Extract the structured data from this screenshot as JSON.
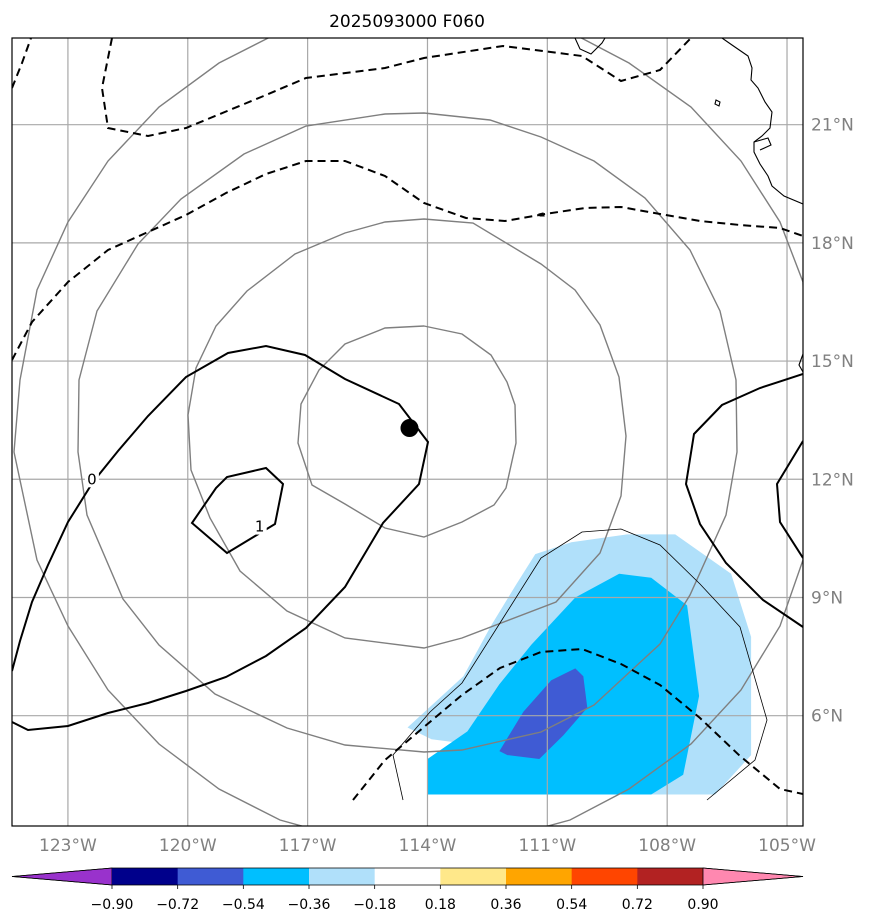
{
  "title": "2025093000 F060",
  "chart_data": {
    "type": "map",
    "projection": "lat-lon",
    "lon_range": [
      -124.4,
      -104.6
    ],
    "lat_range": [
      3.2,
      23.2
    ],
    "grid": true,
    "lon_ticks": [
      {
        "value": -123,
        "label": "123°W"
      },
      {
        "value": -120,
        "label": "120°W"
      },
      {
        "value": -117,
        "label": "117°W"
      },
      {
        "value": -114,
        "label": "114°W"
      },
      {
        "value": -111,
        "label": "111°W"
      },
      {
        "value": -108,
        "label": "108°W"
      },
      {
        "value": -105,
        "label": "105°W"
      }
    ],
    "lat_ticks": [
      {
        "value": 21,
        "label": "21°N"
      },
      {
        "value": 18,
        "label": "18°N"
      },
      {
        "value": 15,
        "label": "15°N"
      },
      {
        "value": 12,
        "label": "12°N"
      },
      {
        "value": 9,
        "label": "9°N"
      },
      {
        "value": 6,
        "label": "6°N"
      }
    ],
    "storm_center": {
      "lon": -114.45,
      "lat": 13.3
    },
    "range_rings_deg": [
      2.75,
      5.5,
      8.25,
      11
    ],
    "contour_labels": [
      {
        "text": "0",
        "lon": -122.4,
        "lat": 12.0
      },
      {
        "text": "1",
        "lon": -118.2,
        "lat": 10.8
      }
    ],
    "filled_regions": [
      {
        "value_range": [
          -0.54,
          -0.36
        ],
        "color": "#b0e0fa",
        "points": [
          [
            -111.6,
            4
          ],
          [
            -111.6,
            5.1
          ],
          [
            -113.9,
            5.4
          ],
          [
            -114.5,
            5.7
          ],
          [
            -113.1,
            7.0
          ],
          [
            -112.4,
            8.3
          ],
          [
            -111.8,
            9.3
          ],
          [
            -111.3,
            10.1
          ],
          [
            -110.4,
            10.4
          ],
          [
            -109.0,
            10.6
          ],
          [
            -107.8,
            10.6
          ],
          [
            -106.4,
            9.6
          ],
          [
            -105.9,
            8.0
          ],
          [
            -105.9,
            5.0
          ],
          [
            -106.8,
            4.0
          ]
        ]
      },
      {
        "value_range": [
          -0.72,
          -0.54
        ],
        "color": "#00bfff",
        "points": [
          [
            -114.0,
            4
          ],
          [
            -114.0,
            4.9
          ],
          [
            -113.0,
            5.6
          ],
          [
            -112.2,
            6.8
          ],
          [
            -111.4,
            7.8
          ],
          [
            -110.3,
            9.0
          ],
          [
            -109.2,
            9.6
          ],
          [
            -108.4,
            9.5
          ],
          [
            -107.5,
            8.8
          ],
          [
            -107.2,
            6.5
          ],
          [
            -107.6,
            4.5
          ],
          [
            -108.4,
            4.0
          ]
        ]
      },
      {
        "value_range": [
          -0.9,
          -0.72
        ],
        "color": "#3f5bd4",
        "points": [
          [
            -112.0,
            5.0
          ],
          [
            -111.2,
            4.9
          ],
          [
            -110.6,
            5.5
          ],
          [
            -110.0,
            6.2
          ],
          [
            -110.1,
            7.0
          ],
          [
            -110.3,
            7.2
          ],
          [
            -110.9,
            6.9
          ],
          [
            -111.6,
            6.1
          ],
          [
            -112.2,
            5.1
          ]
        ]
      }
    ],
    "colorbar": {
      "colors": [
        "#9932cc",
        "#00008b",
        "#3f5bd4",
        "#00bfff",
        "#b0e0fa",
        "#ffffff",
        "#ffe88a",
        "#ffa500",
        "#ff4500",
        "#b22222",
        "#ff88b0"
      ],
      "tick_labels": [
        "−0.90",
        "−0.72",
        "−0.54",
        "−0.36",
        "−0.18",
        "0.18",
        "0.36",
        "0.54",
        "0.72",
        "0.90"
      ],
      "extend": "both"
    }
  }
}
